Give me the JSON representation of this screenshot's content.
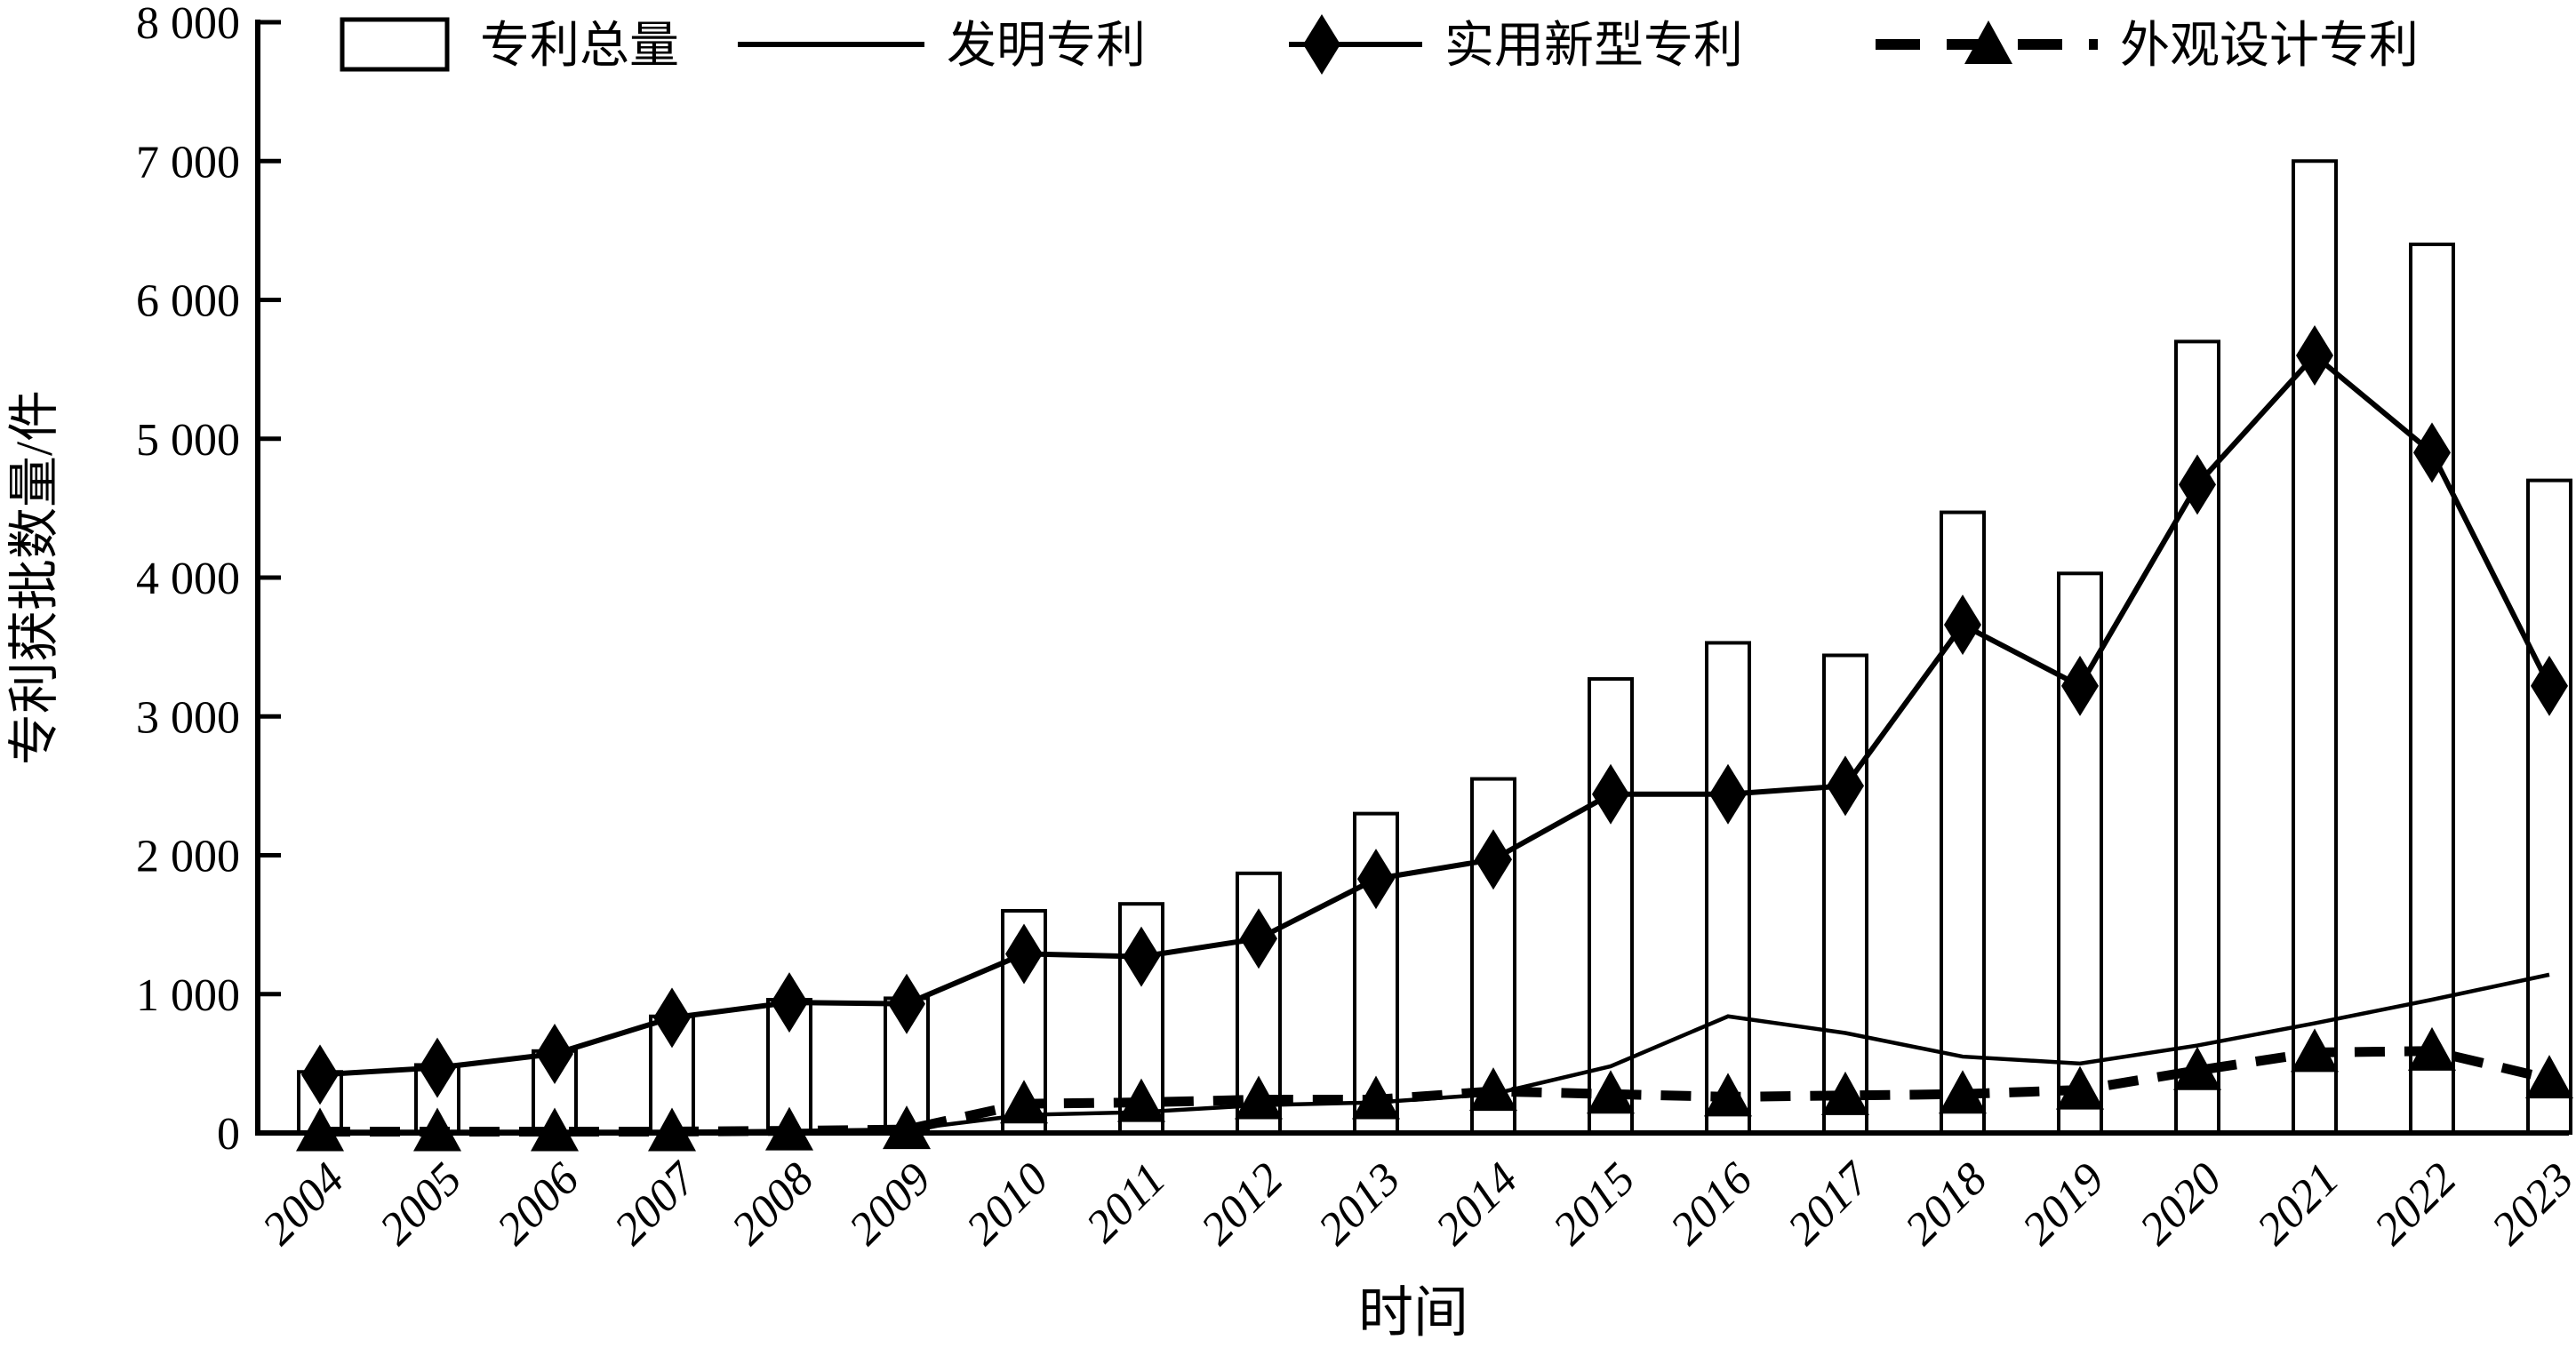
{
  "figure": {
    "background": "#ffffff",
    "foreground": "#000000"
  },
  "chart_data": {
    "type": "bar",
    "subtype": "bar-line-combo",
    "categories": [
      "2004",
      "2005",
      "2006",
      "2007",
      "2008",
      "2009",
      "2010",
      "2011",
      "2012",
      "2013",
      "2014",
      "2015",
      "2016",
      "2017",
      "2018",
      "2019",
      "2020",
      "2021",
      "2022",
      "2023"
    ],
    "series": [
      {
        "name": "专利总量",
        "kind": "bar",
        "marker": "none",
        "dashed": false,
        "values": [
          440,
          490,
          590,
          840,
          960,
          970,
          1600,
          1650,
          1870,
          2300,
          2550,
          3270,
          3530,
          3440,
          4470,
          4030,
          5700,
          7000,
          6400,
          4700
        ]
      },
      {
        "name": "发明专利",
        "kind": "line",
        "marker": "none",
        "dashed": false,
        "values": [
          10,
          10,
          10,
          10,
          15,
          25,
          130,
          150,
          200,
          220,
          280,
          480,
          840,
          720,
          550,
          500,
          630,
          790,
          960,
          1140
        ]
      },
      {
        "name": "实用新型专利",
        "kind": "line",
        "marker": "diamond",
        "dashed": false,
        "values": [
          420,
          470,
          570,
          830,
          940,
          930,
          1290,
          1270,
          1400,
          1830,
          1970,
          2440,
          2440,
          2500,
          3660,
          3220,
          4670,
          5600,
          4900,
          3220
        ]
      },
      {
        "name": "外观设计专利",
        "kind": "line",
        "marker": "triangle",
        "dashed": true,
        "values": [
          10,
          10,
          10,
          10,
          15,
          25,
          210,
          220,
          240,
          240,
          300,
          280,
          260,
          270,
          280,
          310,
          450,
          580,
          590,
          390
        ]
      }
    ],
    "title": "",
    "xlabel": "时间",
    "ylabel": "专利获批数量/件",
    "ylim": [
      0,
      8000
    ],
    "yticks": [
      0,
      1000,
      2000,
      3000,
      4000,
      5000,
      6000,
      7000,
      8000
    ],
    "ytick_labels": [
      "0",
      "1 000",
      "2 000",
      "3 000",
      "4 000",
      "5 000",
      "6 000",
      "7 000",
      "8 000"
    ],
    "legend_position": "top-inside",
    "grid": false
  }
}
